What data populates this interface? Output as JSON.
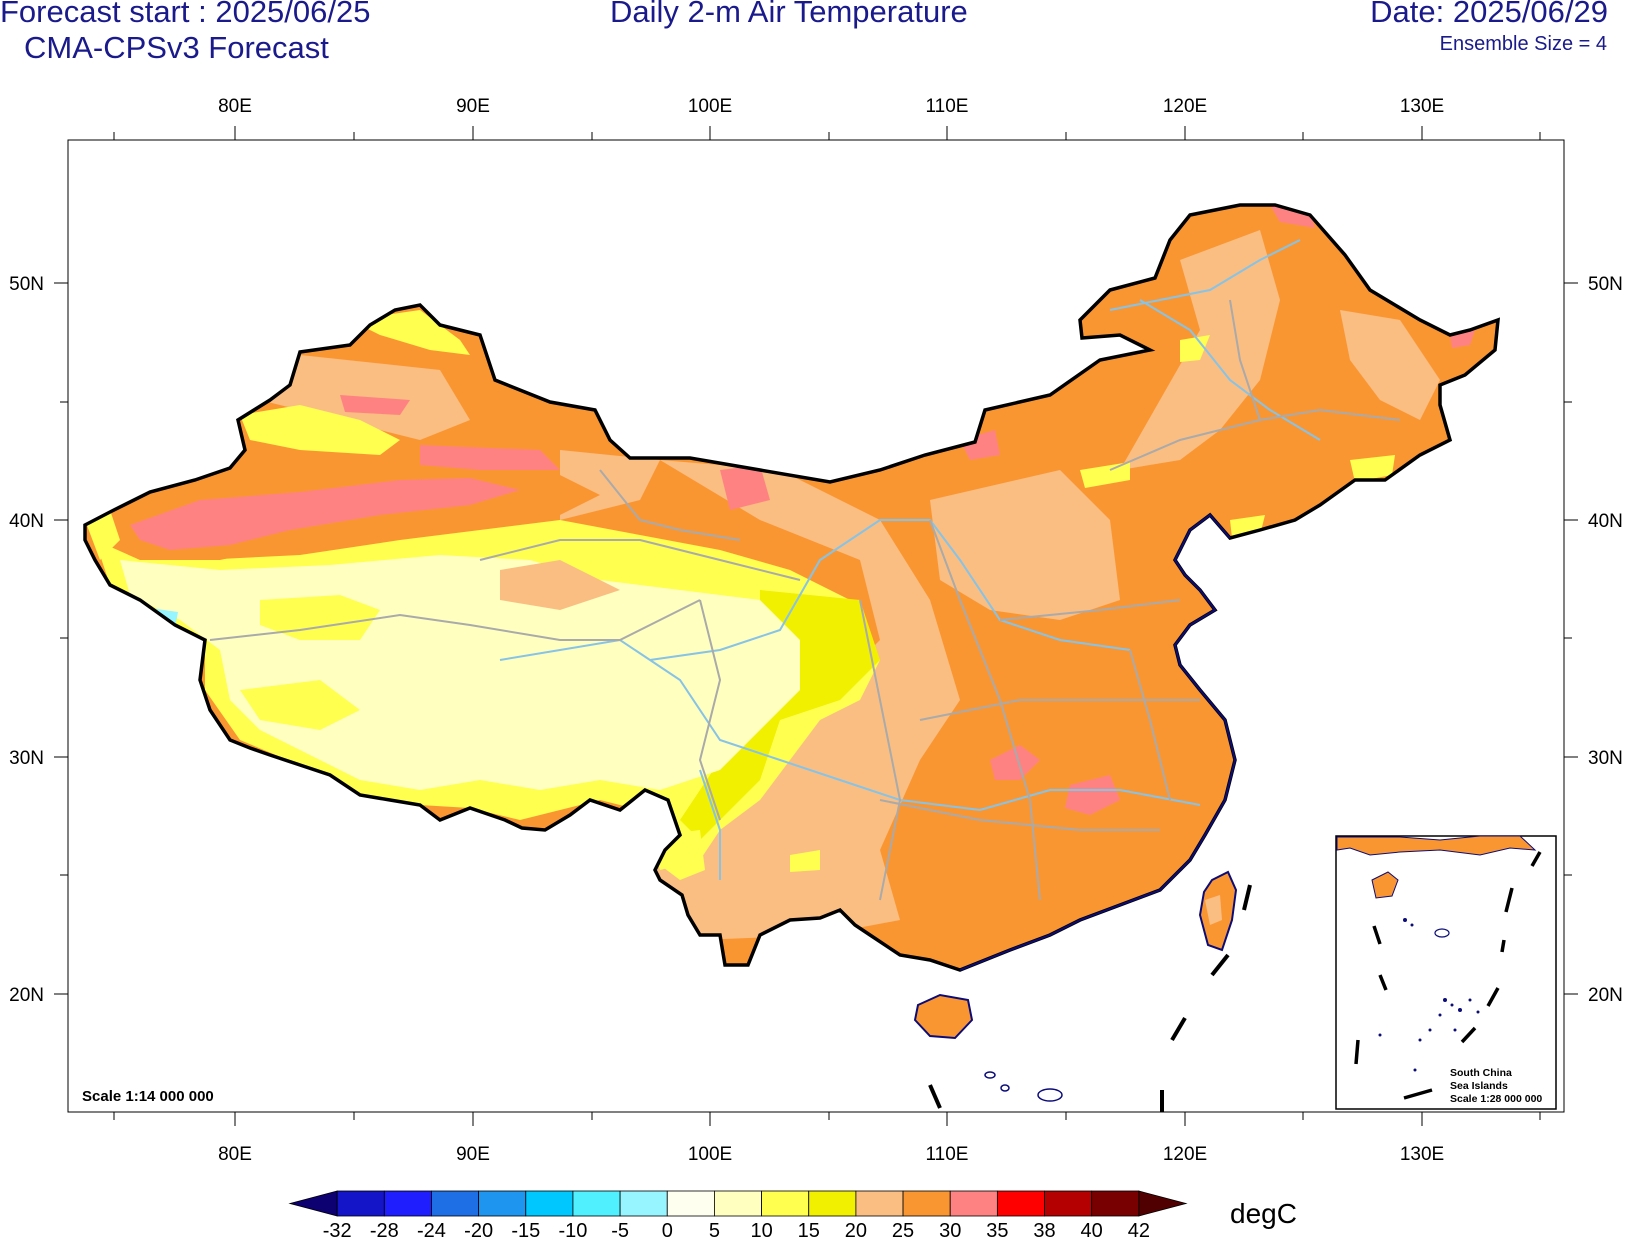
{
  "header": {
    "forecast_start": "Forecast start : 2025/06/25",
    "model": "CMA-CPSv3 Forecast",
    "title": "Daily 2-m Air Temperature",
    "date": "Date: 2025/06/29",
    "ensemble": "Ensemble Size = 4"
  },
  "axes": {
    "lon_labels": [
      "80E",
      "90E",
      "100E",
      "110E",
      "120E",
      "130E"
    ],
    "lat_labels": [
      "50N",
      "40N",
      "30N",
      "20N"
    ]
  },
  "map": {
    "scale": "Scale 1:14 000 000",
    "inset_title_1": "South China",
    "inset_title_2": "Sea Islands",
    "inset_scale": "Scale 1:28 000 000"
  },
  "colorbar": {
    "unit": "degC",
    "levels": [
      "-32",
      "-28",
      "-24",
      "-20",
      "-15",
      "-10",
      "-5",
      "0",
      "5",
      "10",
      "15",
      "20",
      "25",
      "30",
      "35",
      "38",
      "40",
      "42"
    ],
    "colors": [
      "#0d0070",
      "#1414c8",
      "#1e1eff",
      "#1e6ee6",
      "#1e96f0",
      "#00c8ff",
      "#50f0ff",
      "#96f5ff",
      "#fffff0",
      "#ffffc0",
      "#ffff50",
      "#f0f000",
      "#fabe82",
      "#fa9632",
      "#ff8282",
      "#ff0000",
      "#b40000",
      "#780000",
      "#500000"
    ]
  },
  "colors": {
    "header_text": "#1a1a8c",
    "coast": "#0c0c78",
    "river": "#87c3e6",
    "province": "#aaaaaa"
  }
}
